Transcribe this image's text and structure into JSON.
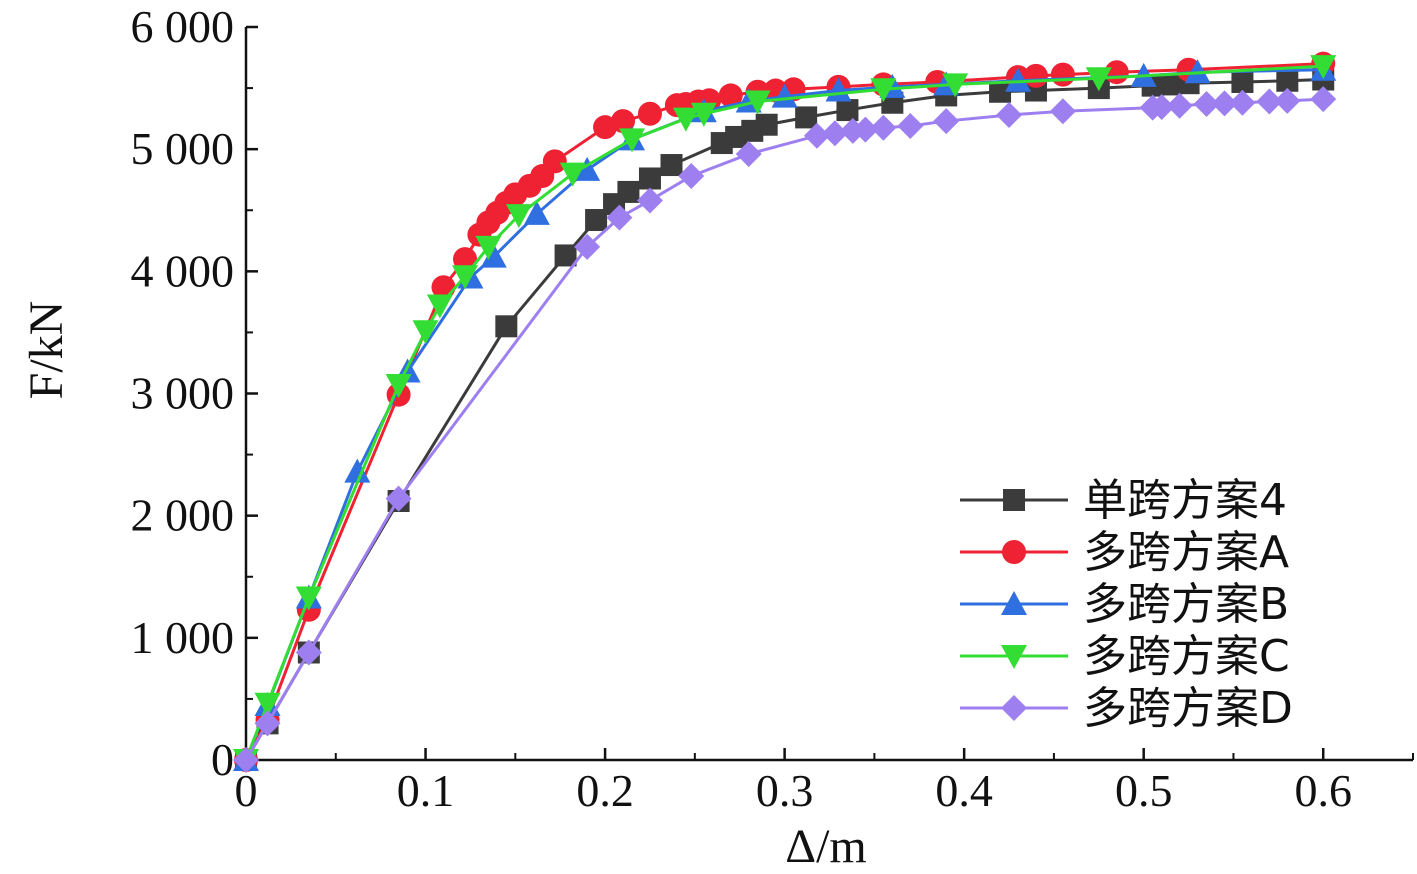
{
  "chart_data": {
    "type": "line",
    "xlabel": "Δ/m",
    "ylabel": "F/kN",
    "xlim": [
      0,
      0.65
    ],
    "ylim": [
      0,
      6000
    ],
    "xticks": [
      0,
      0.1,
      0.2,
      0.3,
      0.4,
      0.5,
      0.6
    ],
    "xtick_labels": [
      "0",
      "0.1",
      "0.2",
      "0.3",
      "0.4",
      "0.5",
      "0.6"
    ],
    "yticks": [
      0,
      1000,
      2000,
      3000,
      4000,
      5000,
      6000
    ],
    "ytick_labels": [
      "0",
      "1 000",
      "2 000",
      "3 000",
      "4 000",
      "5 000",
      "6 000"
    ],
    "legend_position": "lower-right",
    "grid": false,
    "series": [
      {
        "name": "单跨方案4",
        "color": "#3b3b3b",
        "marker": "square",
        "x": [
          0,
          0.012,
          0.035,
          0.085,
          0.145,
          0.178,
          0.195,
          0.205,
          0.213,
          0.225,
          0.237,
          0.265,
          0.273,
          0.282,
          0.29,
          0.312,
          0.335,
          0.36,
          0.39,
          0.42,
          0.44,
          0.475,
          0.505,
          0.515,
          0.525,
          0.555,
          0.58,
          0.6
        ],
        "y": [
          0,
          300,
          880,
          2120,
          3550,
          4130,
          4420,
          4550,
          4650,
          4760,
          4870,
          5050,
          5100,
          5150,
          5200,
          5260,
          5320,
          5380,
          5440,
          5470,
          5480,
          5500,
          5520,
          5530,
          5540,
          5550,
          5560,
          5570
        ]
      },
      {
        "name": "多跨方案A",
        "color": "#ee2233",
        "marker": "circle",
        "x": [
          0,
          0.012,
          0.035,
          0.085,
          0.11,
          0.122,
          0.13,
          0.135,
          0.14,
          0.145,
          0.15,
          0.158,
          0.165,
          0.172,
          0.2,
          0.21,
          0.225,
          0.24,
          0.245,
          0.252,
          0.258,
          0.27,
          0.285,
          0.295,
          0.305,
          0.33,
          0.355,
          0.385,
          0.43,
          0.44,
          0.455,
          0.485,
          0.525,
          0.6
        ],
        "y": [
          0,
          330,
          1230,
          2990,
          3870,
          4100,
          4300,
          4400,
          4480,
          4560,
          4630,
          4700,
          4780,
          4900,
          5180,
          5230,
          5290,
          5360,
          5370,
          5390,
          5400,
          5440,
          5470,
          5480,
          5490,
          5510,
          5530,
          5550,
          5590,
          5600,
          5610,
          5630,
          5650,
          5700
        ]
      },
      {
        "name": "多跨方案B",
        "color": "#2f6fe0",
        "marker": "triangle-up",
        "x": [
          0,
          0.012,
          0.035,
          0.062,
          0.09,
          0.125,
          0.138,
          0.162,
          0.19,
          0.215,
          0.255,
          0.28,
          0.3,
          0.33,
          0.36,
          0.39,
          0.43,
          0.5,
          0.53,
          0.6
        ],
        "y": [
          0,
          450,
          1330,
          2360,
          3180,
          3950,
          4120,
          4470,
          4830,
          5080,
          5310,
          5390,
          5430,
          5480,
          5510,
          5530,
          5560,
          5600,
          5630,
          5650
        ]
      },
      {
        "name": "多跨方案C",
        "color": "#33dd33",
        "marker": "triangle-down",
        "x": [
          0,
          0.012,
          0.035,
          0.085,
          0.1,
          0.108,
          0.122,
          0.135,
          0.152,
          0.182,
          0.215,
          0.245,
          0.255,
          0.285,
          0.355,
          0.395,
          0.475,
          0.6
        ],
        "y": [
          0,
          460,
          1330,
          3070,
          3510,
          3720,
          3960,
          4200,
          4460,
          4800,
          5080,
          5250,
          5290,
          5390,
          5490,
          5530,
          5580,
          5680
        ]
      },
      {
        "name": "多跨方案D",
        "color": "#9e7ff0",
        "marker": "diamond",
        "x": [
          0,
          0.012,
          0.035,
          0.085,
          0.19,
          0.208,
          0.225,
          0.248,
          0.28,
          0.318,
          0.328,
          0.338,
          0.345,
          0.355,
          0.37,
          0.39,
          0.425,
          0.455,
          0.505,
          0.51,
          0.52,
          0.535,
          0.545,
          0.555,
          0.57,
          0.58,
          0.6
        ],
        "y": [
          0,
          300,
          880,
          2140,
          4200,
          4440,
          4580,
          4780,
          4960,
          5110,
          5130,
          5150,
          5160,
          5175,
          5190,
          5230,
          5280,
          5310,
          5340,
          5345,
          5355,
          5370,
          5375,
          5380,
          5390,
          5395,
          5410
        ]
      }
    ]
  }
}
